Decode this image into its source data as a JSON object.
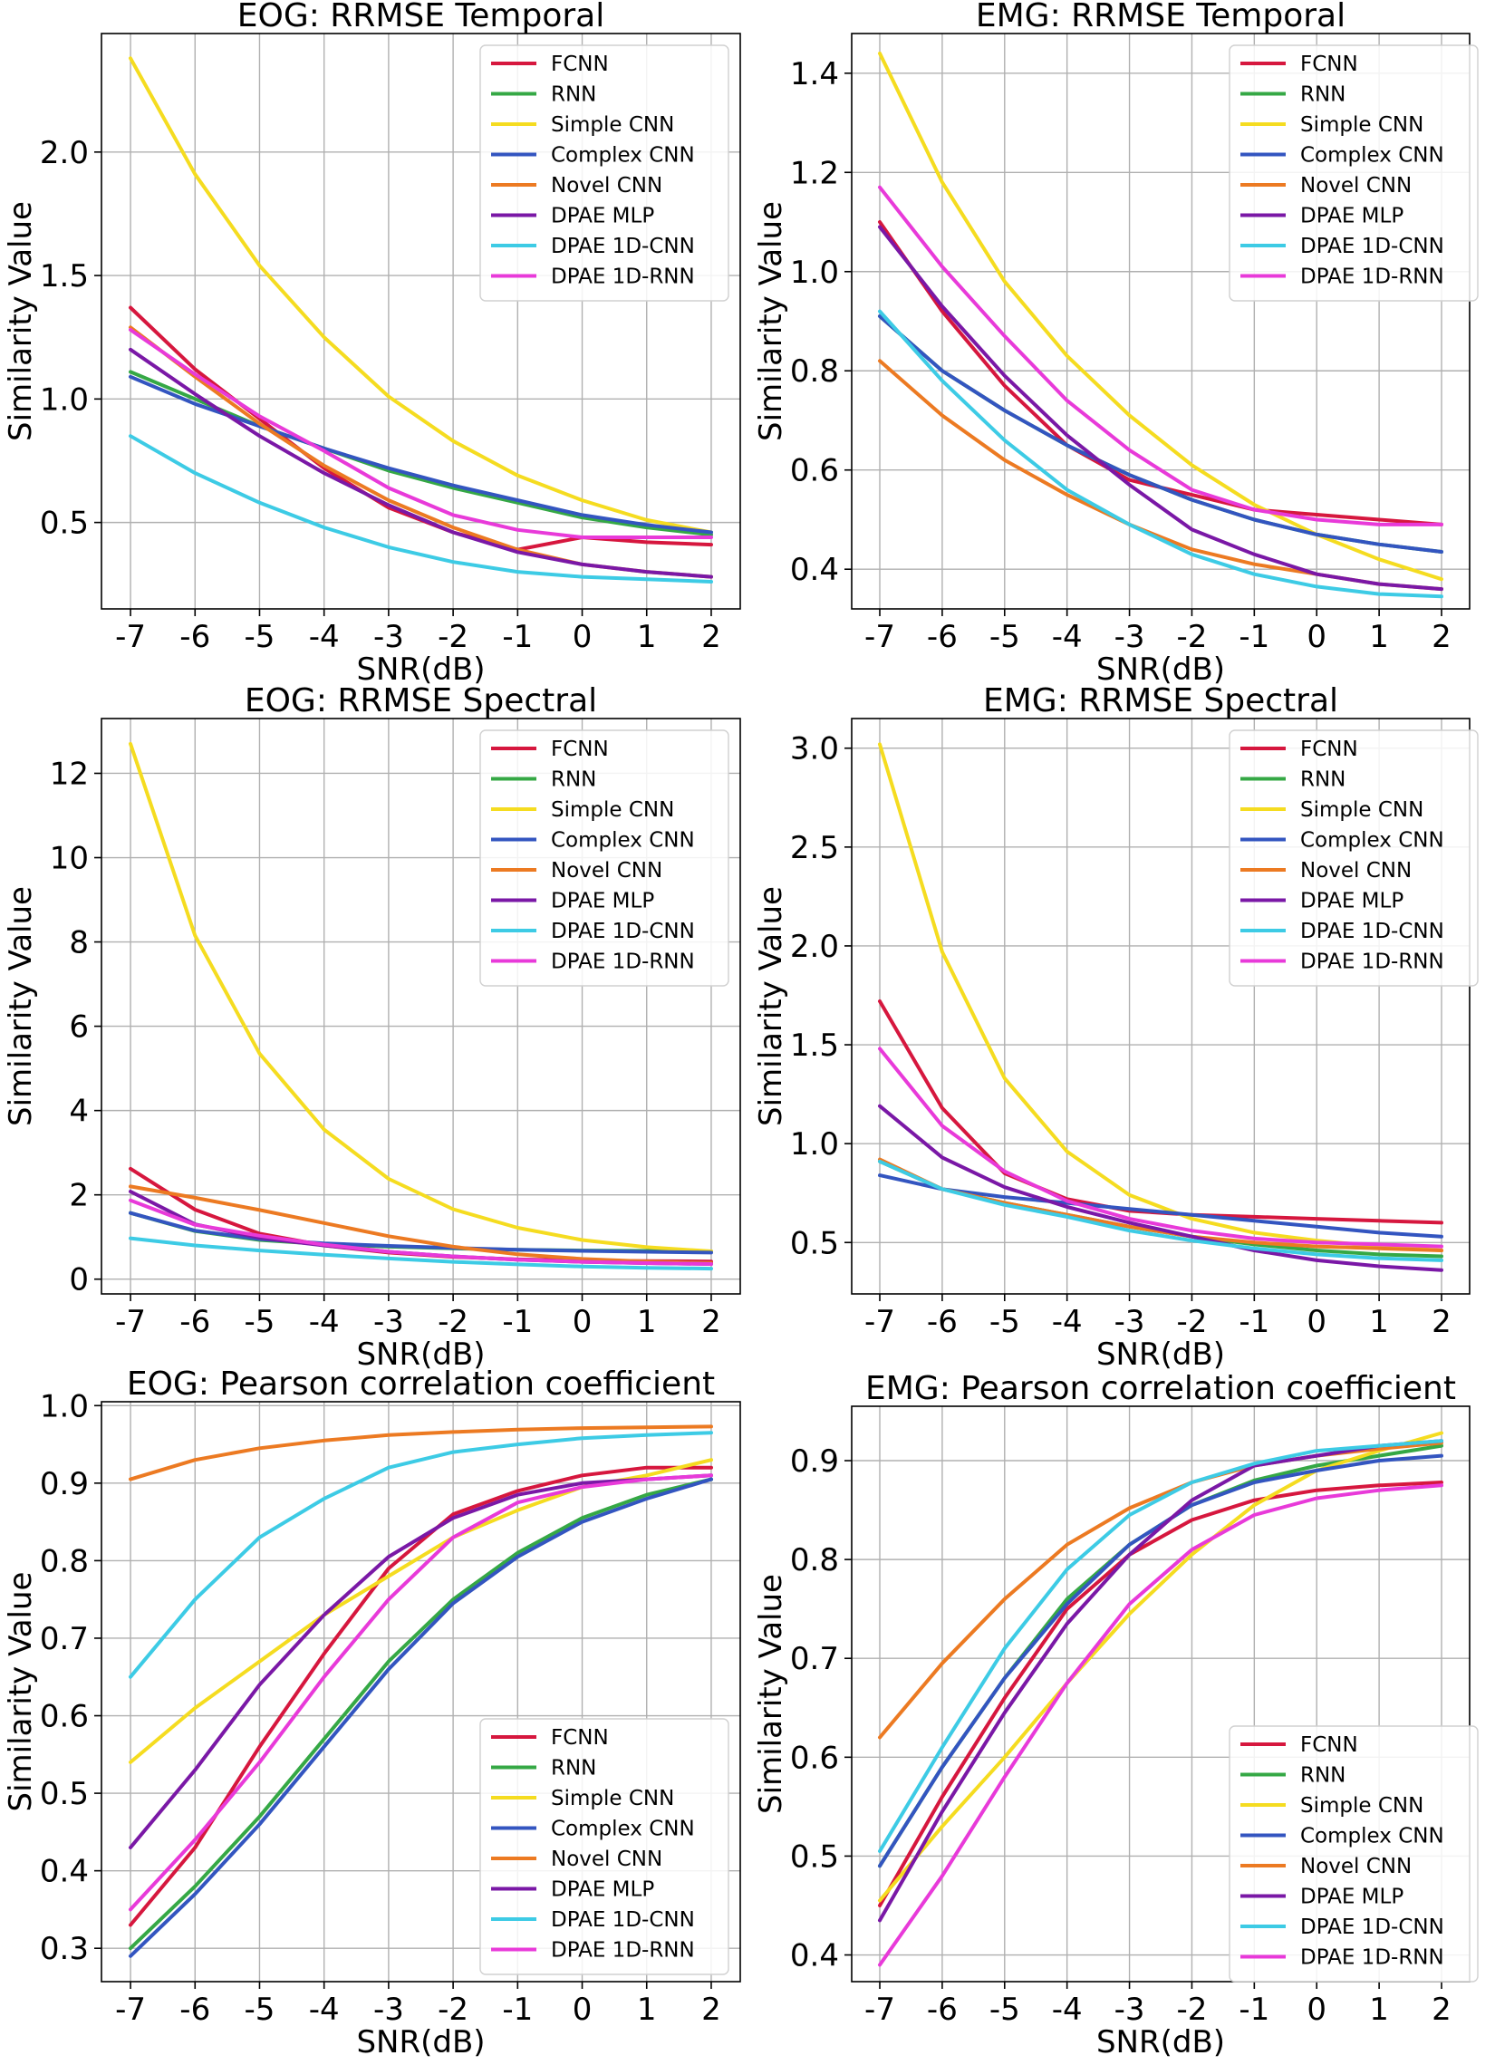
{
  "series_styles": [
    {
      "name": "FCNN",
      "color": "#d6173e"
    },
    {
      "name": "RNN",
      "color": "#35a845"
    },
    {
      "name": "Simple CNN",
      "color": "#f5dc20"
    },
    {
      "name": "Complex CNN",
      "color": "#3355c0"
    },
    {
      "name": "Novel CNN",
      "color": "#ec7a22"
    },
    {
      "name": "DPAE MLP",
      "color": "#7a18a6"
    },
    {
      "name": "DPAE 1D-CNN",
      "color": "#3dcbe5"
    },
    {
      "name": "DPAE 1D-RNN",
      "color": "#e83ad9"
    }
  ],
  "chart_data": [
    {
      "type": "line",
      "title": "EOG: RRMSE Temporal",
      "xlabel": "SNR(dB)",
      "ylabel": "Similarity Value",
      "x": [
        -7,
        -6,
        -5,
        -4,
        -3,
        -2,
        -1,
        0,
        1,
        2
      ],
      "xlim": [
        -7.45,
        2.45
      ],
      "ylim": [
        0.15,
        2.48
      ],
      "yticks": [
        0.5,
        1.0,
        1.5,
        2.0
      ],
      "ytick_labels": [
        "0.5",
        "1.0",
        "1.5",
        "2.0"
      ],
      "grid": true,
      "legend": "top-right",
      "series": [
        {
          "name": "FCNN",
          "values": [
            1.37,
            1.12,
            0.92,
            0.72,
            0.56,
            0.46,
            0.39,
            0.44,
            0.42,
            0.41
          ]
        },
        {
          "name": "RNN",
          "values": [
            1.11,
            1.0,
            0.89,
            0.8,
            0.71,
            0.64,
            0.58,
            0.52,
            0.48,
            0.45
          ]
        },
        {
          "name": "Simple CNN",
          "values": [
            2.38,
            1.91,
            1.54,
            1.25,
            1.01,
            0.83,
            0.69,
            0.59,
            0.51,
            0.46
          ]
        },
        {
          "name": "Complex CNN",
          "values": [
            1.09,
            0.98,
            0.89,
            0.8,
            0.72,
            0.65,
            0.59,
            0.53,
            0.49,
            0.46
          ]
        },
        {
          "name": "Novel CNN",
          "values": [
            1.29,
            1.09,
            0.9,
            0.73,
            0.59,
            0.48,
            0.39,
            0.33,
            0.3,
            0.28
          ]
        },
        {
          "name": "DPAE MLP",
          "values": [
            1.2,
            1.02,
            0.85,
            0.7,
            0.57,
            0.46,
            0.38,
            0.33,
            0.3,
            0.28
          ]
        },
        {
          "name": "DPAE 1D-CNN",
          "values": [
            0.85,
            0.7,
            0.58,
            0.48,
            0.4,
            0.34,
            0.3,
            0.28,
            0.27,
            0.26
          ]
        },
        {
          "name": "DPAE 1D-RNN",
          "values": [
            1.28,
            1.1,
            0.93,
            0.79,
            0.64,
            0.53,
            0.47,
            0.44,
            0.44,
            0.44
          ]
        }
      ]
    },
    {
      "type": "line",
      "title": "EMG: RRMSE Temporal",
      "xlabel": "SNR(dB)",
      "ylabel": "Similarity Value",
      "x": [
        -7,
        -6,
        -5,
        -4,
        -3,
        -2,
        -1,
        0,
        1,
        2
      ],
      "xlim": [
        -7.45,
        2.45
      ],
      "ylim": [
        0.32,
        1.48
      ],
      "yticks": [
        0.4,
        0.6,
        0.8,
        1.0,
        1.2,
        1.4
      ],
      "ytick_labels": [
        "0.4",
        "0.6",
        "0.8",
        "1.0",
        "1.2",
        "1.4"
      ],
      "grid": true,
      "legend": "top-right",
      "series": [
        {
          "name": "FCNN",
          "values": [
            1.1,
            0.92,
            0.77,
            0.65,
            0.58,
            0.55,
            0.52,
            0.51,
            0.5,
            0.49
          ]
        },
        {
          "name": "RNN",
          "values": [
            0.91,
            0.8,
            0.72,
            0.65,
            0.59,
            0.54,
            0.5,
            0.47,
            0.45,
            0.435
          ]
        },
        {
          "name": "Simple CNN",
          "values": [
            1.44,
            1.18,
            0.98,
            0.83,
            0.71,
            0.61,
            0.53,
            0.47,
            0.42,
            0.38
          ]
        },
        {
          "name": "Complex CNN",
          "values": [
            0.91,
            0.8,
            0.72,
            0.65,
            0.59,
            0.54,
            0.5,
            0.47,
            0.45,
            0.435
          ]
        },
        {
          "name": "Novel CNN",
          "values": [
            0.82,
            0.71,
            0.62,
            0.55,
            0.49,
            0.44,
            0.41,
            0.39,
            0.37,
            0.36
          ]
        },
        {
          "name": "DPAE MLP",
          "values": [
            1.09,
            0.93,
            0.79,
            0.67,
            0.57,
            0.48,
            0.43,
            0.39,
            0.37,
            0.36
          ]
        },
        {
          "name": "DPAE 1D-CNN",
          "values": [
            0.92,
            0.78,
            0.66,
            0.56,
            0.49,
            0.43,
            0.39,
            0.365,
            0.35,
            0.345
          ]
        },
        {
          "name": "DPAE 1D-RNN",
          "values": [
            1.17,
            1.01,
            0.87,
            0.74,
            0.64,
            0.56,
            0.52,
            0.5,
            0.49,
            0.49
          ]
        }
      ]
    },
    {
      "type": "line",
      "title": "EOG: RRMSE Spectral",
      "xlabel": "SNR(dB)",
      "ylabel": "Similarity Value",
      "x": [
        -7,
        -6,
        -5,
        -4,
        -3,
        -2,
        -1,
        0,
        1,
        2
      ],
      "xlim": [
        -7.45,
        2.45
      ],
      "ylim": [
        -0.35,
        13.3
      ],
      "yticks": [
        0,
        2,
        4,
        6,
        8,
        10,
        12
      ],
      "ytick_labels": [
        "0",
        "2",
        "4",
        "6",
        "8",
        "10",
        "12"
      ],
      "grid": true,
      "legend": "top-right",
      "series": [
        {
          "name": "FCNN",
          "values": [
            2.62,
            1.65,
            1.08,
            0.8,
            0.63,
            0.53,
            0.47,
            0.44,
            0.43,
            0.42
          ]
        },
        {
          "name": "RNN",
          "values": [
            1.57,
            1.14,
            0.93,
            0.83,
            0.77,
            0.73,
            0.7,
            0.68,
            0.67,
            0.66
          ]
        },
        {
          "name": "Simple CNN",
          "values": [
            12.7,
            8.15,
            5.35,
            3.55,
            2.38,
            1.66,
            1.22,
            0.93,
            0.76,
            0.66
          ]
        },
        {
          "name": "Complex CNN",
          "values": [
            1.57,
            1.15,
            0.95,
            0.85,
            0.79,
            0.74,
            0.7,
            0.67,
            0.65,
            0.63
          ]
        },
        {
          "name": "Novel CNN",
          "values": [
            2.2,
            1.93,
            1.64,
            1.33,
            1.02,
            0.77,
            0.59,
            0.48,
            0.42,
            0.38
          ]
        },
        {
          "name": "DPAE MLP",
          "values": [
            2.08,
            1.3,
            0.98,
            0.8,
            0.65,
            0.54,
            0.46,
            0.41,
            0.38,
            0.36
          ]
        },
        {
          "name": "DPAE 1D-CNN",
          "values": [
            0.97,
            0.8,
            0.68,
            0.58,
            0.49,
            0.41,
            0.35,
            0.3,
            0.27,
            0.25
          ]
        },
        {
          "name": "DPAE 1D-RNN",
          "values": [
            1.87,
            1.29,
            1.03,
            0.82,
            0.65,
            0.54,
            0.46,
            0.41,
            0.38,
            0.36
          ]
        }
      ]
    },
    {
      "type": "line",
      "title": "EMG: RRMSE Spectral",
      "xlabel": "SNR(dB)",
      "ylabel": "Similarity Value",
      "x": [
        -7,
        -6,
        -5,
        -4,
        -3,
        -2,
        -1,
        0,
        1,
        2
      ],
      "xlim": [
        -7.45,
        2.45
      ],
      "ylim": [
        0.24,
        3.15
      ],
      "yticks": [
        0.5,
        1.0,
        1.5,
        2.0,
        2.5,
        3.0
      ],
      "ytick_labels": [
        "0.5",
        "1.0",
        "1.5",
        "2.0",
        "2.5",
        "3.0"
      ],
      "grid": true,
      "legend": "top-right",
      "series": [
        {
          "name": "FCNN",
          "values": [
            1.72,
            1.18,
            0.85,
            0.72,
            0.66,
            0.64,
            0.63,
            0.62,
            0.61,
            0.6
          ]
        },
        {
          "name": "RNN",
          "values": [
            0.91,
            0.77,
            0.7,
            0.64,
            0.58,
            0.53,
            0.49,
            0.46,
            0.44,
            0.43
          ]
        },
        {
          "name": "Simple CNN",
          "values": [
            3.02,
            1.97,
            1.33,
            0.96,
            0.74,
            0.62,
            0.55,
            0.51,
            0.48,
            0.46
          ]
        },
        {
          "name": "Complex CNN",
          "values": [
            0.84,
            0.77,
            0.73,
            0.7,
            0.67,
            0.64,
            0.61,
            0.58,
            0.55,
            0.53
          ]
        },
        {
          "name": "Novel CNN",
          "values": [
            0.92,
            0.77,
            0.7,
            0.64,
            0.58,
            0.53,
            0.5,
            0.48,
            0.47,
            0.46
          ]
        },
        {
          "name": "DPAE MLP",
          "values": [
            1.19,
            0.93,
            0.78,
            0.68,
            0.6,
            0.53,
            0.46,
            0.41,
            0.38,
            0.36
          ]
        },
        {
          "name": "DPAE 1D-CNN",
          "values": [
            0.91,
            0.77,
            0.69,
            0.63,
            0.56,
            0.51,
            0.47,
            0.44,
            0.42,
            0.41
          ]
        },
        {
          "name": "DPAE 1D-RNN",
          "values": [
            1.48,
            1.09,
            0.86,
            0.71,
            0.62,
            0.56,
            0.52,
            0.5,
            0.49,
            0.48
          ]
        }
      ]
    },
    {
      "type": "line",
      "title": "EOG: Pearson correlation coefficient",
      "xlabel": "SNR(dB)",
      "ylabel": "Similarity Value",
      "x": [
        -7,
        -6,
        -5,
        -4,
        -3,
        -2,
        -1,
        0,
        1,
        2
      ],
      "xlim": [
        -7.45,
        2.45
      ],
      "ylim": [
        0.257,
        1.005
      ],
      "yticks": [
        0.3,
        0.4,
        0.5,
        0.6,
        0.7,
        0.8,
        0.9,
        1.0
      ],
      "ytick_labels": [
        "0.3",
        "0.4",
        "0.5",
        "0.6",
        "0.7",
        "0.8",
        "0.9",
        "1.0"
      ],
      "grid": true,
      "legend": "lower-right",
      "series": [
        {
          "name": "FCNN",
          "values": [
            0.33,
            0.43,
            0.56,
            0.68,
            0.79,
            0.86,
            0.89,
            0.91,
            0.92,
            0.92
          ]
        },
        {
          "name": "RNN",
          "values": [
            0.3,
            0.38,
            0.47,
            0.57,
            0.67,
            0.75,
            0.81,
            0.855,
            0.885,
            0.905
          ]
        },
        {
          "name": "Simple CNN",
          "values": [
            0.54,
            0.61,
            0.67,
            0.73,
            0.78,
            0.83,
            0.865,
            0.895,
            0.91,
            0.93
          ]
        },
        {
          "name": "Complex CNN",
          "values": [
            0.29,
            0.37,
            0.46,
            0.56,
            0.66,
            0.745,
            0.805,
            0.85,
            0.88,
            0.905
          ]
        },
        {
          "name": "Novel CNN",
          "values": [
            0.905,
            0.93,
            0.945,
            0.955,
            0.962,
            0.966,
            0.969,
            0.971,
            0.972,
            0.973
          ]
        },
        {
          "name": "DPAE MLP",
          "values": [
            0.43,
            0.53,
            0.64,
            0.73,
            0.805,
            0.855,
            0.885,
            0.9,
            0.905,
            0.91
          ]
        },
        {
          "name": "DPAE 1D-CNN",
          "values": [
            0.65,
            0.75,
            0.83,
            0.88,
            0.92,
            0.94,
            0.95,
            0.958,
            0.962,
            0.965
          ]
        },
        {
          "name": "DPAE 1D-RNN",
          "values": [
            0.35,
            0.44,
            0.54,
            0.65,
            0.75,
            0.83,
            0.875,
            0.895,
            0.905,
            0.91
          ]
        }
      ]
    },
    {
      "type": "line",
      "title": "EMG: Pearson correlation coefficient",
      "xlabel": "SNR(dB)",
      "ylabel": "Similarity Value",
      "x": [
        -7,
        -6,
        -5,
        -4,
        -3,
        -2,
        -1,
        0,
        1,
        2
      ],
      "xlim": [
        -7.45,
        2.45
      ],
      "ylim": [
        0.373,
        0.955
      ],
      "yticks": [
        0.4,
        0.5,
        0.6,
        0.7,
        0.8,
        0.9
      ],
      "ytick_labels": [
        "0.4",
        "0.5",
        "0.6",
        "0.7",
        "0.8",
        "0.9"
      ],
      "grid": true,
      "legend": "lower-right",
      "series": [
        {
          "name": "FCNN",
          "values": [
            0.45,
            0.56,
            0.66,
            0.75,
            0.805,
            0.84,
            0.86,
            0.87,
            0.875,
            0.878
          ]
        },
        {
          "name": "RNN",
          "values": [
            0.49,
            0.59,
            0.68,
            0.76,
            0.815,
            0.855,
            0.88,
            0.895,
            0.905,
            0.915
          ]
        },
        {
          "name": "Simple CNN",
          "values": [
            0.455,
            0.53,
            0.6,
            0.675,
            0.745,
            0.805,
            0.855,
            0.89,
            0.91,
            0.928
          ]
        },
        {
          "name": "Complex CNN",
          "values": [
            0.49,
            0.59,
            0.68,
            0.755,
            0.815,
            0.855,
            0.878,
            0.89,
            0.9,
            0.905
          ]
        },
        {
          "name": "Novel CNN",
          "values": [
            0.62,
            0.695,
            0.76,
            0.815,
            0.852,
            0.878,
            0.895,
            0.905,
            0.912,
            0.918
          ]
        },
        {
          "name": "DPAE MLP",
          "values": [
            0.435,
            0.545,
            0.645,
            0.735,
            0.805,
            0.86,
            0.895,
            0.905,
            0.915,
            0.92
          ]
        },
        {
          "name": "DPAE 1D-CNN",
          "values": [
            0.505,
            0.61,
            0.71,
            0.79,
            0.845,
            0.878,
            0.897,
            0.91,
            0.915,
            0.92
          ]
        },
        {
          "name": "DPAE 1D-RNN",
          "values": [
            0.39,
            0.48,
            0.58,
            0.675,
            0.755,
            0.81,
            0.845,
            0.862,
            0.87,
            0.875
          ]
        }
      ]
    }
  ]
}
